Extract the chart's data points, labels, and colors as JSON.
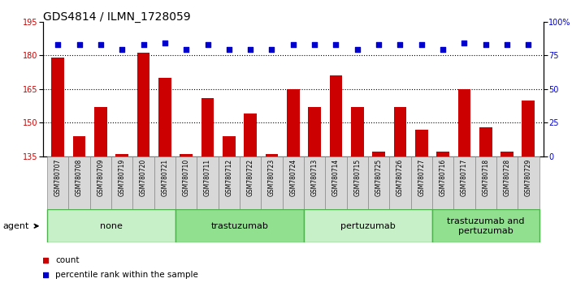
{
  "title": "GDS4814 / ILMN_1728059",
  "samples": [
    "GSM780707",
    "GSM780708",
    "GSM780709",
    "GSM780719",
    "GSM780720",
    "GSM780721",
    "GSM780710",
    "GSM780711",
    "GSM780712",
    "GSM780722",
    "GSM780723",
    "GSM780724",
    "GSM780713",
    "GSM780714",
    "GSM780715",
    "GSM780725",
    "GSM780726",
    "GSM780727",
    "GSM780716",
    "GSM780717",
    "GSM780718",
    "GSM780728",
    "GSM780729"
  ],
  "counts": [
    179,
    144,
    157,
    136,
    181,
    170,
    136,
    161,
    144,
    154,
    136,
    165,
    157,
    171,
    157,
    137,
    157,
    147,
    137,
    165,
    148,
    137,
    160
  ],
  "percentiles": [
    83,
    83,
    83,
    79,
    83,
    84,
    79,
    83,
    79,
    79,
    79,
    83,
    83,
    83,
    79,
    83,
    83,
    83,
    79,
    84,
    83,
    83,
    83
  ],
  "ylim_left": [
    135,
    195
  ],
  "ylim_right": [
    0,
    100
  ],
  "yticks_left": [
    135,
    150,
    165,
    180,
    195
  ],
  "yticks_right": [
    0,
    25,
    50,
    75,
    100
  ],
  "ytick_labels_right": [
    "0",
    "25",
    "50",
    "75",
    "100%"
  ],
  "hlines": [
    150,
    165,
    180
  ],
  "groups": [
    {
      "label": "none",
      "start": 0,
      "end": 6,
      "color": "#c8f0c8"
    },
    {
      "label": "trastuzumab",
      "start": 6,
      "end": 12,
      "color": "#90e090"
    },
    {
      "label": "pertuzumab",
      "start": 12,
      "end": 18,
      "color": "#c8f0c8"
    },
    {
      "label": "trastuzumab and\npertuzumab",
      "start": 18,
      "end": 23,
      "color": "#90e090"
    }
  ],
  "bar_color": "#cc0000",
  "dot_color": "#0000cc",
  "agent_label": "agent",
  "legend_count_label": "count",
  "legend_pct_label": "percentile rank within the sample",
  "title_fontsize": 10,
  "tick_fontsize": 7,
  "group_label_fontsize": 8,
  "sample_fontsize": 5.5
}
